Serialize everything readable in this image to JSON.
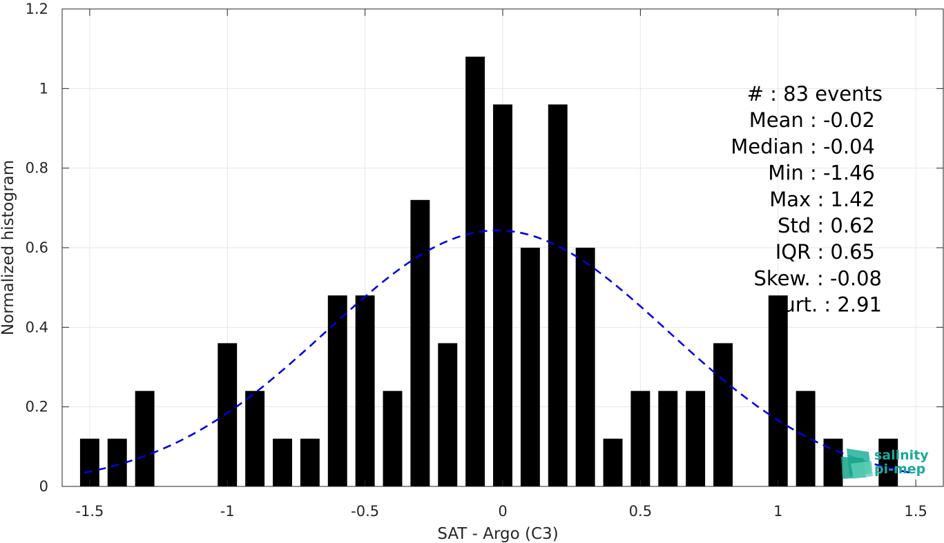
{
  "chart_data": {
    "type": "bar",
    "xlabel": "SAT - Argo (C3)",
    "ylabel": "Normalized histogram",
    "xlim": [
      -1.6,
      1.6
    ],
    "ylim": [
      0,
      1.2
    ],
    "xticks": [
      -1.5,
      -1,
      -0.5,
      0,
      0.5,
      1,
      1.5
    ],
    "xtick_labels": [
      "-1.5",
      "-1",
      "-0.5",
      "0",
      "0.5",
      "1",
      "1.5"
    ],
    "yticks": [
      0,
      0.2,
      0.4,
      0.6,
      0.8,
      1,
      1.2
    ],
    "ytick_labels": [
      "0",
      "0.2",
      "0.4",
      "0.6",
      "0.8",
      "1",
      "1.2"
    ],
    "grid": true,
    "bin_width": 0.1,
    "bar_color": "#000000",
    "x": [
      -1.5,
      -1.4,
      -1.3,
      -1.0,
      -0.9,
      -0.8,
      -0.7,
      -0.6,
      -0.5,
      -0.4,
      -0.3,
      -0.2,
      -0.1,
      0.0,
      0.1,
      0.2,
      0.3,
      0.4,
      0.5,
      0.6,
      0.7,
      0.8,
      1.0,
      1.1,
      1.2,
      1.4
    ],
    "values": [
      0.12,
      0.12,
      0.24,
      0.36,
      0.24,
      0.12,
      0.12,
      0.48,
      0.48,
      0.24,
      0.72,
      0.36,
      1.08,
      0.96,
      0.6,
      0.96,
      0.6,
      0.12,
      0.24,
      0.24,
      0.24,
      0.36,
      0.48,
      0.24,
      0.12,
      0.12
    ],
    "fit": {
      "type": "normal-pdf",
      "mean": -0.02,
      "std": 0.62,
      "x_range": [
        -1.52,
        1.48
      ],
      "color": "#0000e6",
      "style": "dashed"
    },
    "annotations": [
      {
        "key": "#",
        "value": "83 events"
      },
      {
        "key": "Mean",
        "value": "-0.02"
      },
      {
        "key": "Median",
        "value": "-0.04"
      },
      {
        "key": "Min",
        "value": "-1.46"
      },
      {
        "key": "Max",
        "value": "1.42"
      },
      {
        "key": "Std",
        "value": "0.62"
      },
      {
        "key": "IQR",
        "value": "0.65"
      },
      {
        "key": "Skew.",
        "value": "-0.08"
      },
      {
        "key": "Kurt.",
        "value": "2.91"
      }
    ]
  },
  "logo": {
    "line1": "salinity",
    "line2": "pi-mep",
    "color": "#1aa89a"
  }
}
